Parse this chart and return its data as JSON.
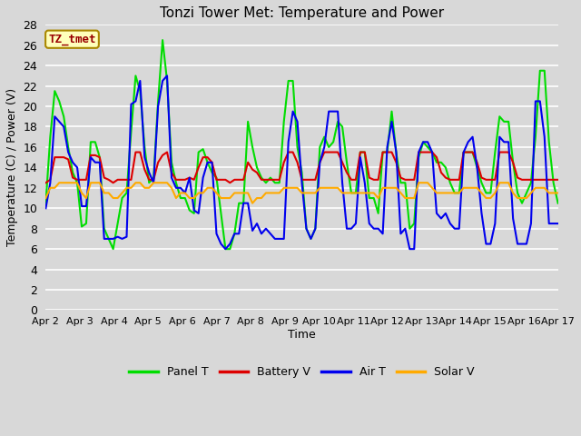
{
  "title": "Tonzi Tower Met: Temperature and Power",
  "xlabel": "Time",
  "ylabel": "Temperature (C) / Power (V)",
  "bg_color": "#d8d8d8",
  "plot_bg_color": "#d8d8d8",
  "grid_color": "#ffffff",
  "ylim": [
    0,
    28
  ],
  "yticks": [
    0,
    2,
    4,
    6,
    8,
    10,
    12,
    14,
    16,
    18,
    20,
    22,
    24,
    26,
    28
  ],
  "xtick_labels": [
    "Apr 2",
    "Apr 3",
    "Apr 4",
    "Apr 5",
    "Apr 6",
    "Apr 7",
    "Apr 8",
    "Apr 9",
    "Apr 10",
    "Apr 11",
    "Apr 12",
    "Apr 13",
    "Apr 14",
    "Apr 15",
    "Apr 16",
    "Apr 17"
  ],
  "legend_labels": [
    "Panel T",
    "Battery V",
    "Air T",
    "Solar V"
  ],
  "legend_colors": [
    "#00dd00",
    "#dd0000",
    "#0000ee",
    "#ffaa00"
  ],
  "tz_label": "TZ_tmet",
  "tz_bg": "#ffffbb",
  "tz_border": "#aa8800",
  "tz_text_color": "#990000",
  "line_width": 1.5,
  "panel_t": [
    10.5,
    17.0,
    21.5,
    20.5,
    19.0,
    16.0,
    13.5,
    12.5,
    8.2,
    8.5,
    16.5,
    16.5,
    15.0,
    8.0,
    7.0,
    6.0,
    8.5,
    11.0,
    11.5,
    17.5,
    23.0,
    21.5,
    16.0,
    12.5,
    13.0,
    20.5,
    26.5,
    22.5,
    14.5,
    12.5,
    11.0,
    11.0,
    9.8,
    9.5,
    15.5,
    15.8,
    14.5,
    13.5,
    13.0,
    9.5,
    6.0,
    6.0,
    7.5,
    10.5,
    10.5,
    18.5,
    16.0,
    14.0,
    13.0,
    12.5,
    13.0,
    12.5,
    12.5,
    18.5,
    22.5,
    22.5,
    16.0,
    13.5,
    8.0,
    7.0,
    8.0,
    16.0,
    17.0,
    16.0,
    16.5,
    18.5,
    18.0,
    14.5,
    11.5,
    11.5,
    15.5,
    15.5,
    11.0,
    11.0,
    9.5,
    15.5,
    15.5,
    19.5,
    15.5,
    12.5,
    12.5,
    8.0,
    8.5,
    15.0,
    16.5,
    16.0,
    15.5,
    14.5,
    14.5,
    14.0,
    12.5,
    11.5,
    11.5,
    15.5,
    15.5,
    15.5,
    14.0,
    12.5,
    11.5,
    11.5,
    15.5,
    19.0,
    18.5,
    18.5,
    14.5,
    11.5,
    10.5,
    11.5,
    12.5,
    17.0,
    23.5,
    23.5,
    16.5,
    12.5,
    10.5
  ],
  "battery_v": [
    12.5,
    12.8,
    15.0,
    15.0,
    15.0,
    14.8,
    13.0,
    12.8,
    12.8,
    12.8,
    15.2,
    15.2,
    15.0,
    13.0,
    12.8,
    12.5,
    12.8,
    12.8,
    12.8,
    12.8,
    15.5,
    15.5,
    13.8,
    12.8,
    12.8,
    14.5,
    15.2,
    15.5,
    13.5,
    12.8,
    12.8,
    12.8,
    13.0,
    12.8,
    14.0,
    15.0,
    15.0,
    14.5,
    12.8,
    12.8,
    12.8,
    12.5,
    12.8,
    12.8,
    12.8,
    14.5,
    13.8,
    13.5,
    12.8,
    12.8,
    12.8,
    12.8,
    12.8,
    14.5,
    15.5,
    15.5,
    14.5,
    12.8,
    12.8,
    12.8,
    12.8,
    14.5,
    15.5,
    15.5,
    15.5,
    15.5,
    14.5,
    13.5,
    12.8,
    12.8,
    15.5,
    15.5,
    13.0,
    12.8,
    12.8,
    15.5,
    15.5,
    15.5,
    14.5,
    13.0,
    12.8,
    12.8,
    12.8,
    15.5,
    15.5,
    15.5,
    15.5,
    15.0,
    13.5,
    13.0,
    12.8,
    12.8,
    12.8,
    15.5,
    15.5,
    15.5,
    14.5,
    13.0,
    12.8,
    12.8,
    12.8,
    15.5,
    15.5,
    15.5,
    14.5,
    13.0,
    12.8,
    12.8,
    12.8,
    12.8,
    12.8,
    12.8,
    12.8,
    12.8,
    12.8
  ],
  "air_t": [
    10.0,
    12.5,
    19.0,
    18.5,
    18.0,
    15.5,
    14.5,
    14.0,
    10.2,
    10.2,
    15.0,
    14.5,
    14.5,
    7.0,
    7.0,
    7.0,
    7.2,
    7.0,
    7.2,
    20.2,
    20.5,
    22.5,
    15.0,
    13.5,
    12.5,
    20.0,
    22.5,
    23.0,
    13.0,
    12.0,
    12.0,
    11.5,
    13.0,
    9.8,
    9.5,
    13.0,
    14.5,
    14.5,
    7.5,
    6.5,
    6.0,
    6.5,
    7.5,
    7.5,
    10.5,
    10.5,
    7.8,
    8.5,
    7.5,
    8.0,
    7.5,
    7.0,
    7.0,
    7.0,
    16.5,
    19.5,
    18.5,
    12.5,
    8.0,
    7.0,
    8.0,
    14.5,
    16.0,
    19.5,
    19.5,
    19.5,
    12.5,
    8.0,
    8.0,
    8.5,
    15.0,
    12.5,
    8.5,
    8.0,
    8.0,
    7.5,
    16.0,
    18.5,
    15.5,
    7.5,
    8.0,
    6.0,
    6.0,
    15.5,
    16.5,
    16.5,
    15.5,
    9.5,
    9.0,
    9.5,
    8.5,
    8.0,
    8.0,
    15.5,
    16.5,
    17.0,
    14.0,
    9.5,
    6.5,
    6.5,
    8.5,
    17.0,
    16.5,
    16.5,
    9.0,
    6.5,
    6.5,
    6.5,
    8.5,
    20.5,
    20.5,
    17.0,
    8.5,
    8.5,
    8.5
  ],
  "solar_v": [
    11.0,
    12.0,
    12.0,
    12.5,
    12.5,
    12.5,
    12.5,
    12.5,
    11.5,
    11.0,
    12.5,
    12.5,
    12.5,
    11.5,
    11.5,
    11.0,
    11.0,
    11.5,
    12.0,
    12.0,
    12.5,
    12.5,
    12.0,
    12.0,
    12.5,
    12.5,
    12.5,
    12.5,
    12.0,
    11.0,
    11.5,
    11.5,
    11.0,
    11.0,
    11.5,
    11.5,
    12.0,
    12.0,
    11.5,
    11.0,
    11.0,
    11.0,
    11.5,
    11.5,
    11.5,
    11.5,
    10.5,
    11.0,
    11.0,
    11.5,
    11.5,
    11.5,
    11.5,
    12.0,
    12.0,
    12.0,
    12.0,
    11.5,
    11.5,
    11.5,
    11.5,
    12.0,
    12.0,
    12.0,
    12.0,
    12.0,
    11.5,
    11.5,
    11.5,
    11.5,
    11.5,
    11.5,
    11.5,
    11.5,
    11.0,
    12.0,
    12.0,
    12.0,
    12.0,
    11.5,
    11.0,
    11.0,
    11.0,
    12.5,
    12.5,
    12.5,
    12.0,
    11.5,
    11.5,
    11.5,
    11.5,
    11.5,
    11.5,
    12.0,
    12.0,
    12.0,
    12.0,
    11.5,
    11.0,
    11.0,
    11.5,
    12.5,
    12.5,
    12.5,
    11.5,
    11.0,
    11.0,
    11.0,
    11.5,
    12.0,
    12.0,
    12.0,
    11.5,
    11.5,
    11.5
  ]
}
